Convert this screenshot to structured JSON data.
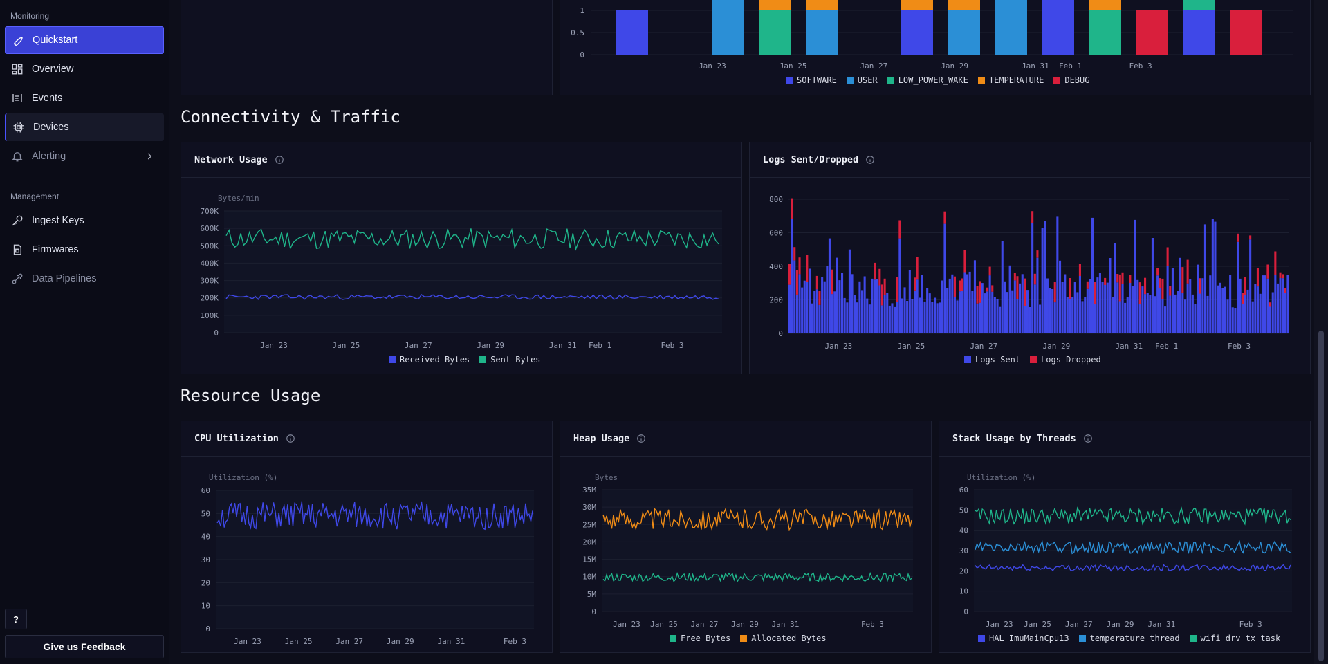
{
  "sidebar": {
    "monitoring_label": "Monitoring",
    "management_label": "Management",
    "items": [
      {
        "label": "Quickstart",
        "icon": "rocket-icon"
      },
      {
        "label": "Overview",
        "icon": "dashboard-icon"
      },
      {
        "label": "Events",
        "icon": "events-icon"
      },
      {
        "label": "Devices",
        "icon": "chip-icon"
      },
      {
        "label": "Alerting",
        "icon": "bell-icon"
      },
      {
        "label": "Ingest Keys",
        "icon": "key-icon"
      },
      {
        "label": "Firmwares",
        "icon": "file-icon"
      },
      {
        "label": "Data Pipelines",
        "icon": "pipeline-icon"
      }
    ],
    "help_label": "?",
    "feedback_label": "Give us Feedback"
  },
  "sections": {
    "connectivity": "Connectivity & Traffic",
    "resource": "Resource Usage"
  },
  "colors": {
    "indigo": "#3f48e8",
    "blue": "#2b8fd6",
    "green": "#1fb58a",
    "orange": "#f08c16",
    "red": "#d91f3c"
  },
  "x_ticks": [
    "Jan 23",
    "Jan 25",
    "Jan 27",
    "Jan 29",
    "Jan 31",
    "Feb 1",
    "Feb 3"
  ],
  "reboot_chart": {
    "y_ticks": [
      "1",
      "0.5",
      "0"
    ],
    "legend": [
      "SOFTWARE",
      "USER",
      "LOW_POWER_WAKE",
      "TEMPERATURE",
      "DEBUG"
    ]
  },
  "network": {
    "title": "Network Usage",
    "unit": "Bytes/min",
    "y_ticks": [
      "700K",
      "600K",
      "500K",
      "400K",
      "300K",
      "200K",
      "100K",
      "0"
    ],
    "legend": [
      "Received Bytes",
      "Sent Bytes"
    ]
  },
  "logs": {
    "title": "Logs Sent/Dropped",
    "y_ticks": [
      "800",
      "600",
      "400",
      "200",
      "0"
    ],
    "legend": [
      "Logs Sent",
      "Logs Dropped"
    ]
  },
  "cpu": {
    "title": "CPU Utilization",
    "unit": "Utilization (%)",
    "y_ticks": [
      "60",
      "50",
      "40",
      "30",
      "20",
      "10",
      "0"
    ],
    "x_ticks": [
      "Jan 23",
      "Jan 25",
      "Jan 27",
      "Jan 29",
      "Jan 31",
      "Feb 3"
    ]
  },
  "heap": {
    "title": "Heap Usage",
    "unit": "Bytes",
    "y_ticks": [
      "35M",
      "30M",
      "25M",
      "20M",
      "15M",
      "10M",
      "5M",
      "0"
    ],
    "x_ticks": [
      "Jan 23",
      "Jan 25",
      "Jan 27",
      "Jan 29",
      "Jan 31",
      "Feb 3"
    ],
    "legend": [
      "Free Bytes",
      "Allocated Bytes"
    ]
  },
  "stack": {
    "title": "Stack Usage by Threads",
    "unit": "Utilization (%)",
    "y_ticks": [
      "60",
      "50",
      "40",
      "30",
      "20",
      "10",
      "0"
    ],
    "x_ticks": [
      "Jan 23",
      "Jan 25",
      "Jan 27",
      "Jan 29",
      "Jan 31",
      "Feb 3"
    ],
    "legend": [
      "HAL_ImuMainCpu13",
      "temperature_thread",
      "wifi_drv_tx_task"
    ]
  }
}
